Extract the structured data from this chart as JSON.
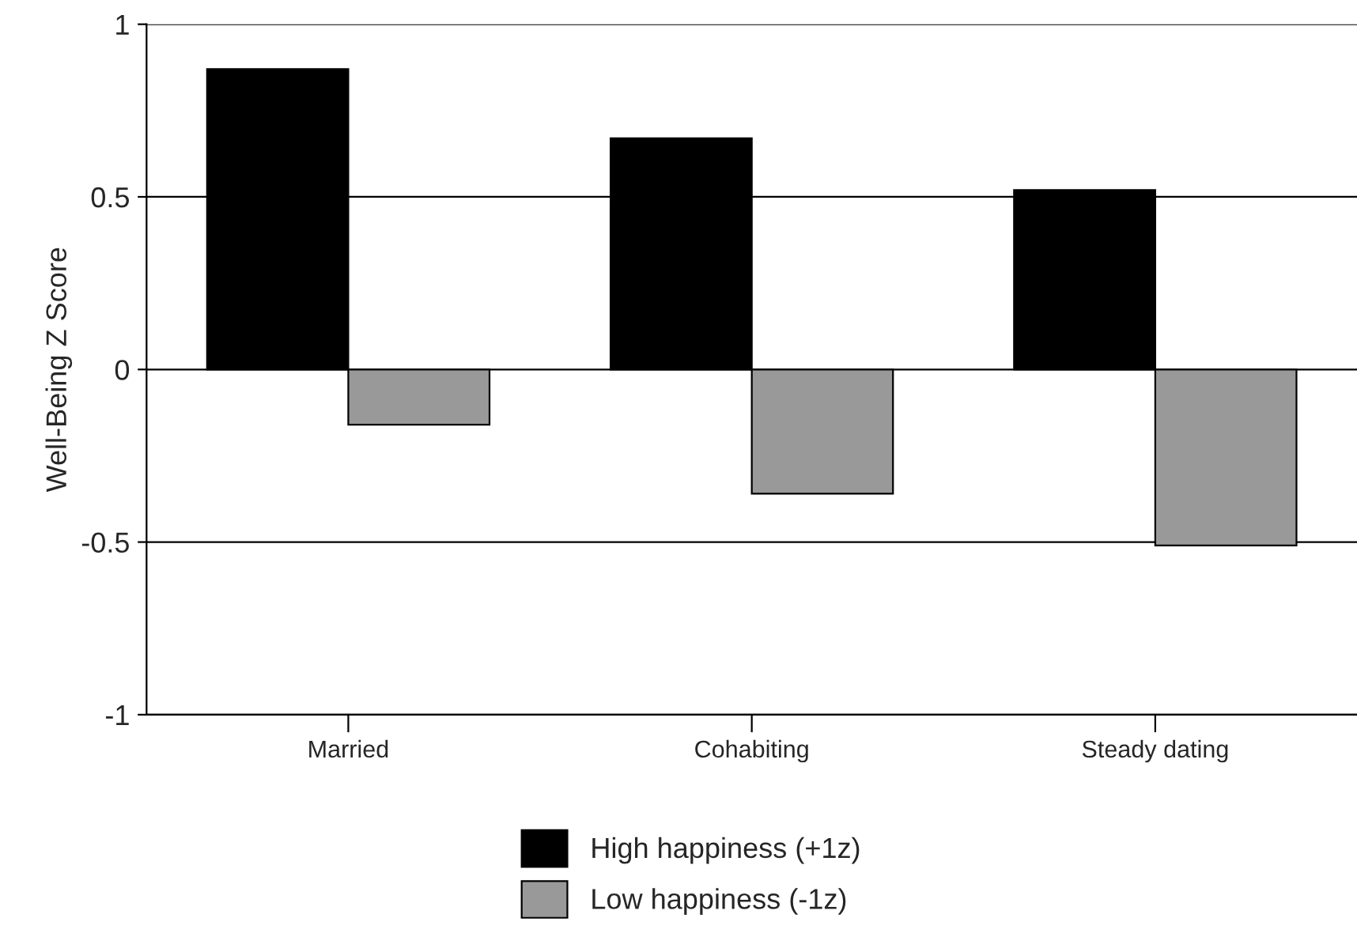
{
  "chart_data": {
    "type": "bar",
    "ylabel": "Well-Being Z Score",
    "categories": [
      "Married",
      "Cohabiting",
      "Steady dating"
    ],
    "series": [
      {
        "name": "High happiness (+1z)",
        "color": "#000000",
        "values": [
          0.87,
          0.67,
          0.52
        ]
      },
      {
        "name": "Low happiness (-1z)",
        "color": "#999999",
        "values": [
          -0.16,
          -0.36,
          -0.51
        ]
      }
    ],
    "ylim": [
      -1,
      1
    ],
    "yticks": [
      -1,
      -0.5,
      0,
      0.5,
      1
    ],
    "grid": "y",
    "legend": "bottom"
  }
}
